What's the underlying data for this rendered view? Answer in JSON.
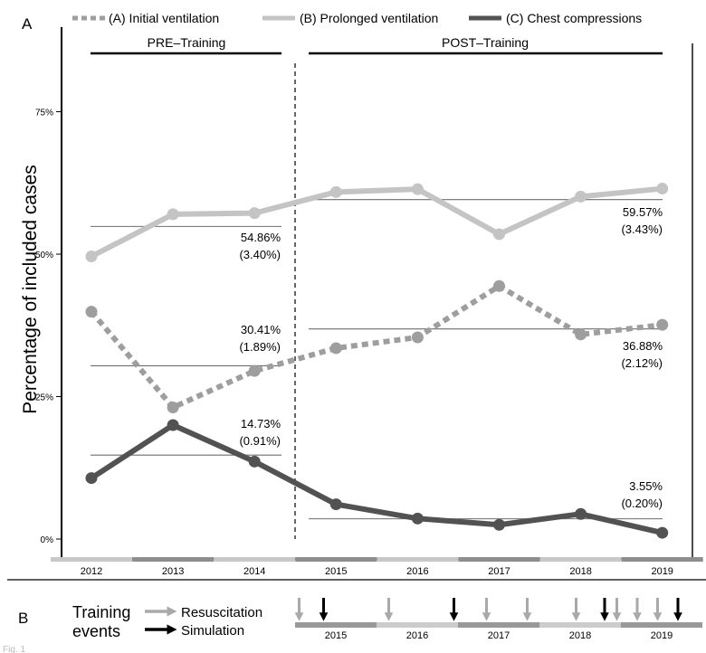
{
  "panels": {
    "a": "A",
    "b": "B"
  },
  "fig_caption": "Fig. 1",
  "colors": {
    "series_a": "#9e9e9e",
    "series_b": "#c4c4c4",
    "series_c": "#525252",
    "resus_arrow": "#a9a9a9",
    "sim_arrow": "#000000",
    "hline": "#6e6e6e"
  },
  "chart_data": {
    "type": "line",
    "ylabel": "Percentage of included cases",
    "ylim": [
      0,
      0.75
    ],
    "y_ticks": [
      "0%",
      "25%",
      "50%",
      "75%"
    ],
    "categories": [
      "2012",
      "2013",
      "2014",
      "2015",
      "2016",
      "2017",
      "2018",
      "2019"
    ],
    "legend_position": "top",
    "series": [
      {
        "name": "(A) Initial ventilation",
        "style": "dotted",
        "values": [
          0.399,
          0.231,
          0.295,
          0.335,
          0.354,
          0.444,
          0.359,
          0.376
        ]
      },
      {
        "name": "(B) Prolonged ventilation",
        "style": "solid",
        "values": [
          0.496,
          0.57,
          0.572,
          0.609,
          0.614,
          0.535,
          0.601,
          0.615
        ]
      },
      {
        "name": "(C) Chest compressions",
        "style": "solid",
        "values": [
          0.107,
          0.2,
          0.136,
          0.061,
          0.036,
          0.025,
          0.044,
          0.011
        ]
      }
    ],
    "periods": [
      {
        "label": "PRE–Training",
        "from": "2012",
        "to": "2014"
      },
      {
        "label": "POST–Training",
        "from": "2015",
        "to": "2019"
      }
    ],
    "period_means": [
      {
        "period": "PRE–Training",
        "series": "(B) Prolonged ventilation",
        "value": 0.5486,
        "label": "54.86%",
        "se": "(3.40%)"
      },
      {
        "period": "PRE–Training",
        "series": "(A) Initial ventilation",
        "value": 0.3041,
        "label": "30.41%",
        "se": "(1.89%)"
      },
      {
        "period": "PRE–Training",
        "series": "(C) Chest compressions",
        "value": 0.1473,
        "label": "14.73%",
        "se": "(0.91%)"
      },
      {
        "period": "POST–Training",
        "series": "(B) Prolonged ventilation",
        "value": 0.5957,
        "label": "59.57%",
        "se": "(3.43%)"
      },
      {
        "period": "POST–Training",
        "series": "(A) Initial ventilation",
        "value": 0.3688,
        "label": "36.88%",
        "se": "(2.12%)"
      },
      {
        "period": "POST–Training",
        "series": "(C) Chest compressions",
        "value": 0.0355,
        "label": "3.55%",
        "se": "(0.20%)"
      }
    ]
  },
  "timeline": {
    "title_line1": "Training",
    "title_line2": "events",
    "legend": [
      {
        "type": "resuscitation",
        "label": "Resuscitation"
      },
      {
        "type": "simulation",
        "label": "Simulation"
      }
    ],
    "years": [
      "2015",
      "2016",
      "2017",
      "2018",
      "2019"
    ],
    "events": [
      {
        "type": "resuscitation",
        "t": 2015.05
      },
      {
        "type": "simulation",
        "t": 2015.35
      },
      {
        "type": "resuscitation",
        "t": 2016.15
      },
      {
        "type": "simulation",
        "t": 2016.95
      },
      {
        "type": "resuscitation",
        "t": 2017.35
      },
      {
        "type": "resuscitation",
        "t": 2017.85
      },
      {
        "type": "resuscitation",
        "t": 2018.45
      },
      {
        "type": "simulation",
        "t": 2018.8
      },
      {
        "type": "resuscitation",
        "t": 2018.95
      },
      {
        "type": "resuscitation",
        "t": 2019.2
      },
      {
        "type": "resuscitation",
        "t": 2019.45
      },
      {
        "type": "simulation",
        "t": 2019.7
      }
    ]
  }
}
